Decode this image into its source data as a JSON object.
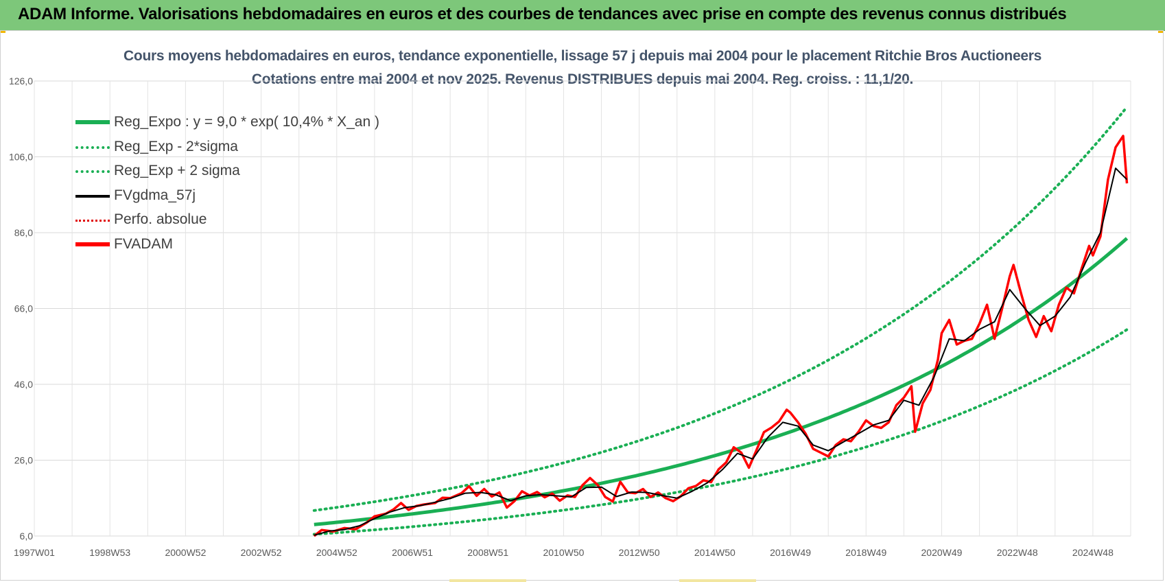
{
  "banner": {
    "title": "ADAM Informe. Valorisations hebdomadaires en euros et des courbes de tendances avec prise en compte des revenus connus distribués"
  },
  "chart_data": {
    "type": "line",
    "title_line1": "Cours moyens hebdomadaires en euros, tendance exponentielle, lissage 57 j depuis mai 2004 pour le placement Ritchie Bros Auctioneers",
    "title_line2": "Cotations entre mai 2004 et nov 2025. Revenus DISTRIBUES depuis mai 2004. Reg. croiss. : 11,1/20.",
    "x_tick_labels": [
      "1997W01",
      "1998W53",
      "2000W52",
      "2002W52",
      "2004W52",
      "2006W51",
      "2008W51",
      "2010W50",
      "2012W50",
      "2014W50",
      "2016W49",
      "2018W49",
      "2020W49",
      "2022W48",
      "2024W48"
    ],
    "x_tick_years": [
      1997.0,
      1999.0,
      2001.0,
      2003.0,
      2005.0,
      2007.0,
      2009.0,
      2011.0,
      2013.0,
      2015.0,
      2017.0,
      2019.0,
      2021.0,
      2023.0,
      2025.0
    ],
    "xlim": [
      1997.0,
      2026.0
    ],
    "y_tick_labels": [
      "6,0",
      "26,0",
      "46,0",
      "66,0",
      "86,0",
      "106,0",
      "126,0"
    ],
    "y_ticks": [
      6,
      26,
      46,
      66,
      86,
      106,
      126
    ],
    "ylim": [
      6,
      126
    ],
    "grid": true,
    "legend_position": "top-left",
    "legend": [
      {
        "label": "Reg_Expo : y = 9,0 * exp( 10,4% *  X_an )",
        "style": "sw-reg"
      },
      {
        "label": "Reg_Exp - 2*sigma",
        "style": "sw-dot-green"
      },
      {
        "label": "Reg_Exp + 2 sigma",
        "style": "sw-dot-green"
      },
      {
        "label": "FVgdma_57j",
        "style": "sw-black"
      },
      {
        "label": "Perfo. absolue",
        "style": "sw-dot-red"
      },
      {
        "label": "FVADAM",
        "style": "sw-red"
      }
    ],
    "regression": {
      "a": 9.0,
      "rate": 0.104,
      "start_year": 2004.4,
      "end_year": 2025.9,
      "lower_factor": 0.715,
      "upper_factor": 1.41
    },
    "series": [
      {
        "name": "FVADAM",
        "color": "#ff0000",
        "points": [
          [
            2004.4,
            6.0
          ],
          [
            2004.6,
            7.6
          ],
          [
            2004.9,
            7.2
          ],
          [
            2005.2,
            8.1
          ],
          [
            2005.5,
            7.8
          ],
          [
            2005.8,
            9.6
          ],
          [
            2006.0,
            11.2
          ],
          [
            2006.3,
            11.9
          ],
          [
            2006.5,
            13.0
          ],
          [
            2006.7,
            14.7
          ],
          [
            2006.9,
            12.9
          ],
          [
            2007.1,
            13.9
          ],
          [
            2007.3,
            14.3
          ],
          [
            2007.6,
            14.7
          ],
          [
            2007.8,
            16.1
          ],
          [
            2008.0,
            16.0
          ],
          [
            2008.3,
            17.3
          ],
          [
            2008.5,
            19.1
          ],
          [
            2008.7,
            16.6
          ],
          [
            2008.9,
            18.4
          ],
          [
            2009.1,
            16.4
          ],
          [
            2009.3,
            17.5
          ],
          [
            2009.5,
            13.5
          ],
          [
            2009.7,
            15.2
          ],
          [
            2009.9,
            17.8
          ],
          [
            2010.1,
            16.7
          ],
          [
            2010.3,
            17.6
          ],
          [
            2010.5,
            16.2
          ],
          [
            2010.7,
            17.2
          ],
          [
            2010.9,
            15.3
          ],
          [
            2011.1,
            16.7
          ],
          [
            2011.3,
            16.3
          ],
          [
            2011.5,
            19.4
          ],
          [
            2011.7,
            21.3
          ],
          [
            2011.9,
            19.5
          ],
          [
            2012.1,
            16.3
          ],
          [
            2012.3,
            15.1
          ],
          [
            2012.5,
            20.3
          ],
          [
            2012.7,
            17.5
          ],
          [
            2012.9,
            17.3
          ],
          [
            2013.1,
            18.4
          ],
          [
            2013.3,
            16.3
          ],
          [
            2013.5,
            17.5
          ],
          [
            2013.7,
            16.0
          ],
          [
            2013.9,
            15.2
          ],
          [
            2014.1,
            16.5
          ],
          [
            2014.3,
            18.6
          ],
          [
            2014.5,
            19.2
          ],
          [
            2014.7,
            20.7
          ],
          [
            2014.9,
            20.2
          ],
          [
            2015.1,
            23.6
          ],
          [
            2015.3,
            25.4
          ],
          [
            2015.5,
            29.4
          ],
          [
            2015.7,
            28.0
          ],
          [
            2015.9,
            24.0
          ],
          [
            2016.1,
            28.6
          ],
          [
            2016.3,
            33.4
          ],
          [
            2016.5,
            34.6
          ],
          [
            2016.7,
            36.2
          ],
          [
            2016.9,
            39.3
          ],
          [
            2017.0,
            38.5
          ],
          [
            2017.2,
            36.0
          ],
          [
            2017.4,
            33.0
          ],
          [
            2017.6,
            29.0
          ],
          [
            2017.8,
            28.0
          ],
          [
            2018.0,
            27.0
          ],
          [
            2018.2,
            30.0
          ],
          [
            2018.4,
            31.5
          ],
          [
            2018.6,
            31.0
          ],
          [
            2018.8,
            33.5
          ],
          [
            2019.0,
            36.5
          ],
          [
            2019.2,
            35.0
          ],
          [
            2019.4,
            34.5
          ],
          [
            2019.6,
            36.0
          ],
          [
            2019.8,
            40.5
          ],
          [
            2020.0,
            42.5
          ],
          [
            2020.2,
            45.5
          ],
          [
            2020.3,
            33.5
          ],
          [
            2020.5,
            41.0
          ],
          [
            2020.7,
            44.5
          ],
          [
            2020.9,
            52.5
          ],
          [
            2021.0,
            59.5
          ],
          [
            2021.2,
            63.0
          ],
          [
            2021.4,
            56.5
          ],
          [
            2021.6,
            57.5
          ],
          [
            2021.8,
            58.0
          ],
          [
            2022.0,
            62.0
          ],
          [
            2022.2,
            67.0
          ],
          [
            2022.4,
            58.0
          ],
          [
            2022.6,
            66.0
          ],
          [
            2022.8,
            74.5
          ],
          [
            2022.9,
            77.5
          ],
          [
            2023.1,
            70.0
          ],
          [
            2023.3,
            63.0
          ],
          [
            2023.5,
            58.5
          ],
          [
            2023.7,
            64.0
          ],
          [
            2023.9,
            60.0
          ],
          [
            2024.1,
            67.0
          ],
          [
            2024.3,
            71.5
          ],
          [
            2024.5,
            70.0
          ],
          [
            2024.7,
            76.5
          ],
          [
            2024.9,
            82.5
          ],
          [
            2025.0,
            80.0
          ],
          [
            2025.2,
            85.0
          ],
          [
            2025.4,
            100.0
          ],
          [
            2025.6,
            108.5
          ],
          [
            2025.8,
            111.5
          ],
          [
            2025.9,
            99.0
          ]
        ]
      },
      {
        "name": "FVgdma_57j",
        "color": "#000000",
        "points": [
          [
            2004.4,
            6.2
          ],
          [
            2004.8,
            7.3
          ],
          [
            2005.2,
            7.7
          ],
          [
            2005.6,
            8.7
          ],
          [
            2006.0,
            10.6
          ],
          [
            2006.4,
            12.3
          ],
          [
            2006.8,
            13.5
          ],
          [
            2007.2,
            14.0
          ],
          [
            2007.6,
            14.9
          ],
          [
            2008.0,
            15.9
          ],
          [
            2008.4,
            17.3
          ],
          [
            2008.8,
            17.5
          ],
          [
            2009.2,
            16.9
          ],
          [
            2009.6,
            15.3
          ],
          [
            2010.0,
            16.6
          ],
          [
            2010.4,
            16.9
          ],
          [
            2010.8,
            16.6
          ],
          [
            2011.2,
            16.3
          ],
          [
            2011.6,
            18.8
          ],
          [
            2012.0,
            18.9
          ],
          [
            2012.4,
            16.4
          ],
          [
            2012.8,
            17.6
          ],
          [
            2013.2,
            17.5
          ],
          [
            2013.6,
            16.7
          ],
          [
            2014.0,
            16.0
          ],
          [
            2014.4,
            17.8
          ],
          [
            2014.8,
            20.0
          ],
          [
            2015.2,
            23.5
          ],
          [
            2015.6,
            27.8
          ],
          [
            2016.0,
            26.3
          ],
          [
            2016.4,
            32.0
          ],
          [
            2016.8,
            36.0
          ],
          [
            2017.2,
            35.0
          ],
          [
            2017.6,
            30.0
          ],
          [
            2018.0,
            28.5
          ],
          [
            2018.4,
            30.8
          ],
          [
            2018.8,
            33.0
          ],
          [
            2019.2,
            35.3
          ],
          [
            2019.6,
            36.5
          ],
          [
            2020.0,
            41.8
          ],
          [
            2020.4,
            40.5
          ],
          [
            2020.8,
            48.0
          ],
          [
            2021.2,
            58.0
          ],
          [
            2021.6,
            57.5
          ],
          [
            2022.0,
            60.5
          ],
          [
            2022.4,
            62.5
          ],
          [
            2022.8,
            71.0
          ],
          [
            2023.2,
            66.0
          ],
          [
            2023.6,
            61.5
          ],
          [
            2024.0,
            64.0
          ],
          [
            2024.4,
            69.0
          ],
          [
            2024.8,
            78.0
          ],
          [
            2025.2,
            86.0
          ],
          [
            2025.6,
            103.0
          ],
          [
            2025.9,
            100.0
          ]
        ]
      }
    ]
  }
}
